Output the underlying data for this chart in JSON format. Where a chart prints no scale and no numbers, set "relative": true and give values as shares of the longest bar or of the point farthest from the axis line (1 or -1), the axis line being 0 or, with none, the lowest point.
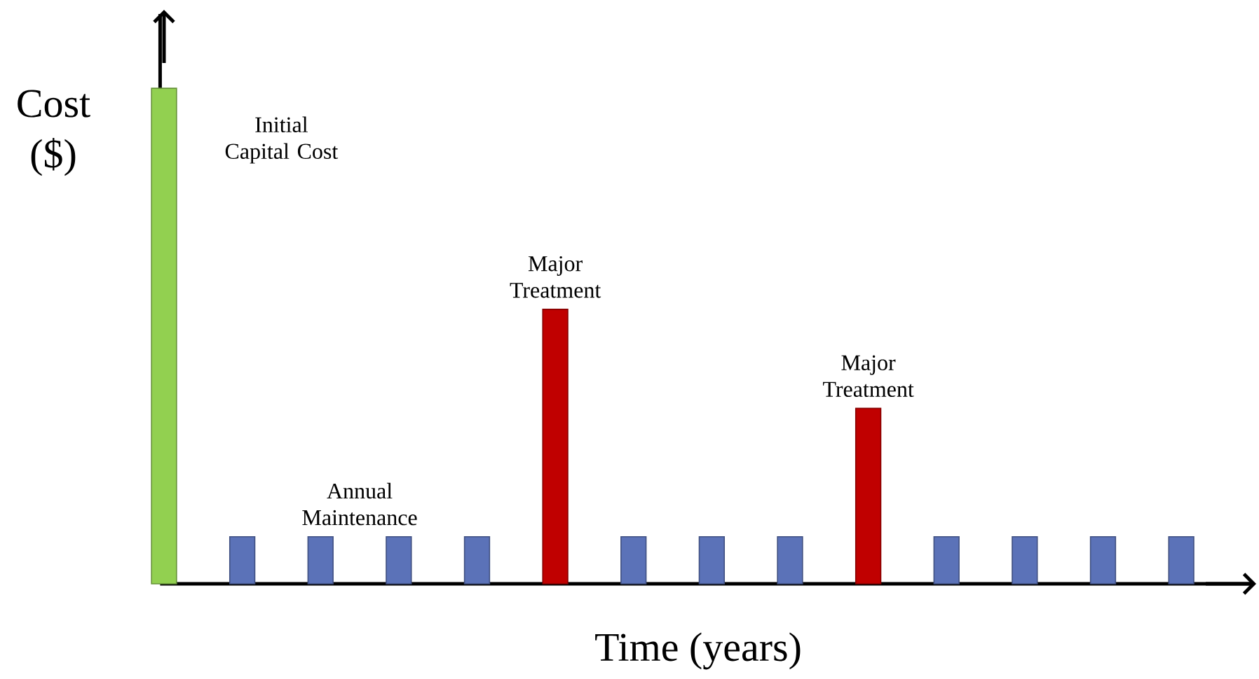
{
  "chart_data": {
    "type": "bar",
    "relative": true,
    "xlabel": "Time (years)",
    "ylabel": "Cost ($)",
    "categories": [
      null,
      null,
      null,
      null,
      null,
      null,
      null,
      null,
      null,
      null,
      null,
      null,
      null,
      null
    ],
    "values": [
      1,
      0.095,
      0.095,
      0.095,
      0.095,
      0.554,
      0.095,
      0.095,
      0.095,
      0.354,
      0.095,
      0.095,
      0.095,
      0.095
    ],
    "colors": [
      "#92d050",
      "#5b72b8",
      "#5b72b8",
      "#5b72b8",
      "#5b72b8",
      "#c00000",
      "#5b72b8",
      "#5b72b8",
      "#5b72b8",
      "#c00000",
      "#5b72b8",
      "#5b72b8",
      "#5b72b8",
      "#5b72b8"
    ],
    "annotations": [
      "Initial Capital Cost",
      "Annual Maintenance",
      {
        "text": "Major Treatment",
        "y": 0.554
      },
      {
        "text": "Major Treatment",
        "y": 0.354
      }
    ]
  }
}
